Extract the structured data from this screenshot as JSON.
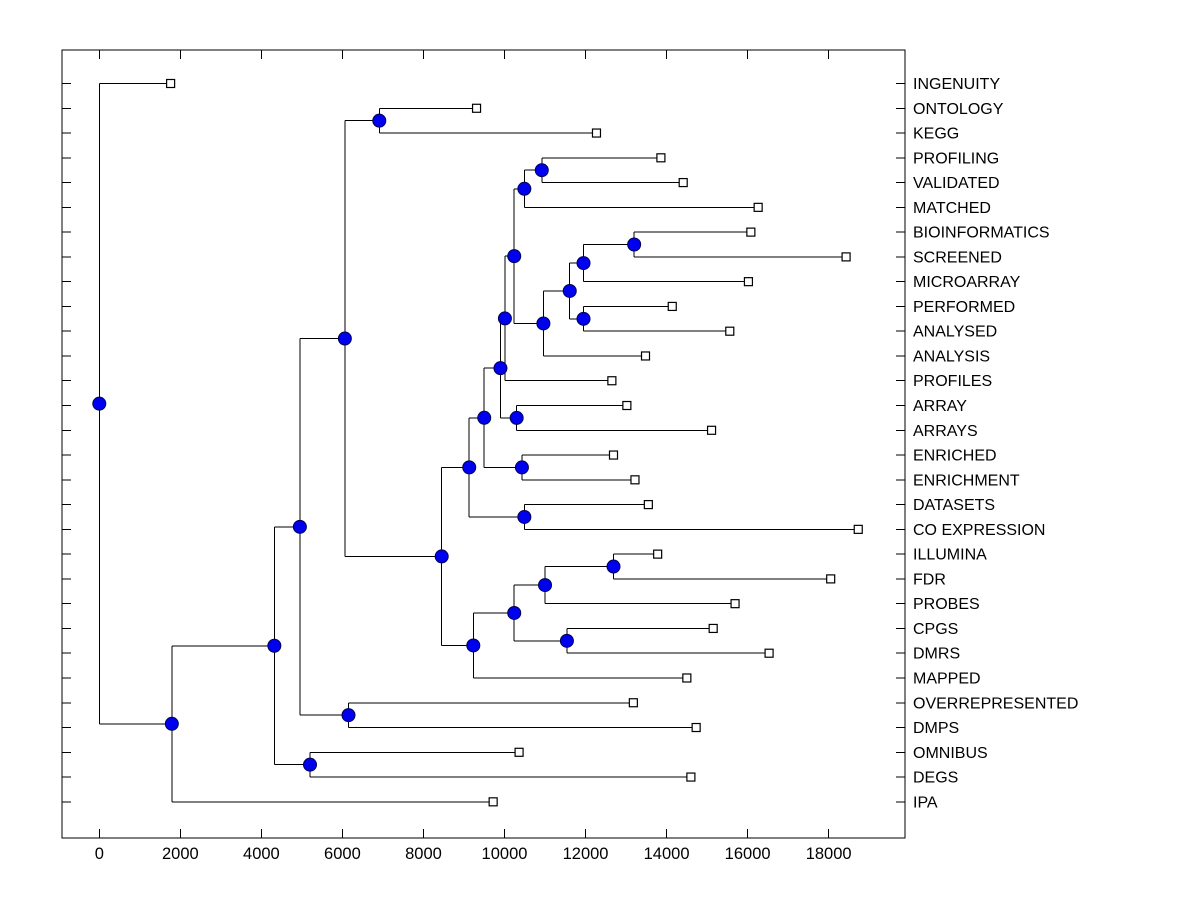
{
  "figure": {
    "background": "#ffffff",
    "frame_color": "#000000",
    "line_color": "#000000"
  },
  "chart_data": {
    "type": "dendrogram",
    "subtype": "phylogenetic-tree",
    "orientation": "horizontal, root at left, leaf labels at right",
    "title": "",
    "xlabel": "",
    "ylabel": "",
    "grid": false,
    "x_axis": {
      "ticks": [
        0,
        2000,
        4000,
        6000,
        8000,
        10000,
        12000,
        14000,
        16000,
        18000
      ],
      "range": [
        -920,
        19880
      ]
    },
    "marker_styles": {
      "branch": {
        "shape": "circle",
        "fill": "#0000f0",
        "edge": "#000050"
      },
      "leaf": {
        "shape": "square",
        "fill": "#ffffff",
        "edge": "#000000"
      }
    },
    "leaves": [
      {
        "label": "INGENUITY",
        "distance": 1760
      },
      {
        "label": "ONTOLOGY",
        "distance": 9310
      },
      {
        "label": "KEGG",
        "distance": 12270
      },
      {
        "label": "PROFILING",
        "distance": 13860
      },
      {
        "label": "VALIDATED",
        "distance": 14410
      },
      {
        "label": "MATCHED",
        "distance": 16260
      },
      {
        "label": "BIOINFORMATICS",
        "distance": 16080
      },
      {
        "label": "SCREENED",
        "distance": 18430
      },
      {
        "label": "MICROARRAY",
        "distance": 16020
      },
      {
        "label": "PERFORMED",
        "distance": 14140
      },
      {
        "label": "ANALYSED",
        "distance": 15560
      },
      {
        "label": "ANALYSIS",
        "distance": 13480
      },
      {
        "label": "PROFILES",
        "distance": 12650
      },
      {
        "label": "ARRAY",
        "distance": 13020
      },
      {
        "label": "ARRAYS",
        "distance": 15110
      },
      {
        "label": "ENRICHED",
        "distance": 12690
      },
      {
        "label": "ENRICHMENT",
        "distance": 13220
      },
      {
        "label": "DATASETS",
        "distance": 13550
      },
      {
        "label": "CO EXPRESSION",
        "distance": 18730
      },
      {
        "label": "ILLUMINA",
        "distance": 13780
      },
      {
        "label": "FDR",
        "distance": 18050
      },
      {
        "label": "PROBES",
        "distance": 15690
      },
      {
        "label": "CPGS",
        "distance": 15150
      },
      {
        "label": "DMRS",
        "distance": 16530
      },
      {
        "label": "MAPPED",
        "distance": 14500
      },
      {
        "label": "OVERREPRESENTED",
        "distance": 13180
      },
      {
        "label": "DMPS",
        "distance": 14730
      },
      {
        "label": "OMNIBUS",
        "distance": 10360
      },
      {
        "label": "DEGS",
        "distance": 14600
      },
      {
        "label": "IPA",
        "distance": 9720
      }
    ],
    "branches": [
      {
        "id": "ROOT",
        "distance": 0,
        "children": [
          "INGENUITY",
          "N1"
        ]
      },
      {
        "id": "N1",
        "distance": 1790,
        "children": [
          "N2",
          "IPA"
        ]
      },
      {
        "id": "N2",
        "distance": 4320,
        "children": [
          "N3",
          "N4"
        ]
      },
      {
        "id": "N3",
        "distance": 4950,
        "children": [
          "N5",
          "N6"
        ]
      },
      {
        "id": "N4",
        "distance": 5200,
        "children": [
          "OMNIBUS",
          "DEGS"
        ]
      },
      {
        "id": "N5",
        "distance": 6060,
        "children": [
          "N7",
          "N8"
        ]
      },
      {
        "id": "N6",
        "distance": 6150,
        "children": [
          "OVERREPRESENTED",
          "DMPS"
        ]
      },
      {
        "id": "N7",
        "distance": 6910,
        "children": [
          "ONTOLOGY",
          "KEGG"
        ]
      },
      {
        "id": "N8",
        "distance": 8450,
        "children": [
          "N9",
          "N10"
        ]
      },
      {
        "id": "N9",
        "distance": 9130,
        "children": [
          "N11",
          "N12"
        ]
      },
      {
        "id": "N10",
        "distance": 9230,
        "children": [
          "N13",
          "MAPPED"
        ]
      },
      {
        "id": "N11",
        "distance": 9500,
        "children": [
          "N14",
          "N15"
        ]
      },
      {
        "id": "N12",
        "distance": 10490,
        "children": [
          "DATASETS",
          "CO EXPRESSION"
        ]
      },
      {
        "id": "N13",
        "distance": 10240,
        "children": [
          "N16",
          "N17"
        ]
      },
      {
        "id": "N14",
        "distance": 9900,
        "children": [
          "N18",
          "N19"
        ]
      },
      {
        "id": "N15",
        "distance": 10430,
        "children": [
          "ENRICHED",
          "ENRICHMENT"
        ]
      },
      {
        "id": "N16",
        "distance": 11000,
        "children": [
          "N20",
          "PROBES"
        ]
      },
      {
        "id": "N17",
        "distance": 11540,
        "children": [
          "CPGS",
          "DMRS"
        ]
      },
      {
        "id": "N18",
        "distance": 10010,
        "children": [
          "N21",
          "PROFILES"
        ]
      },
      {
        "id": "N19",
        "distance": 10300,
        "children": [
          "ARRAY",
          "ARRAYS"
        ]
      },
      {
        "id": "N20",
        "distance": 12690,
        "children": [
          "ILLUMINA",
          "FDR"
        ]
      },
      {
        "id": "N21",
        "distance": 10240,
        "children": [
          "N22",
          "N23"
        ]
      },
      {
        "id": "N22",
        "distance": 10490,
        "children": [
          "N24",
          "MATCHED"
        ]
      },
      {
        "id": "N23",
        "distance": 10960,
        "children": [
          "N25",
          "ANALYSIS"
        ]
      },
      {
        "id": "N24",
        "distance": 10920,
        "children": [
          "PROFILING",
          "VALIDATED"
        ]
      },
      {
        "id": "N25",
        "distance": 11610,
        "children": [
          "N26",
          "N27"
        ]
      },
      {
        "id": "N26",
        "distance": 11950,
        "children": [
          "N28",
          "MICROARRAY"
        ]
      },
      {
        "id": "N27",
        "distance": 11950,
        "children": [
          "PERFORMED",
          "ANALYSED"
        ]
      },
      {
        "id": "N28",
        "distance": 13200,
        "children": [
          "BIOINFORMATICS",
          "SCREENED"
        ]
      }
    ]
  }
}
